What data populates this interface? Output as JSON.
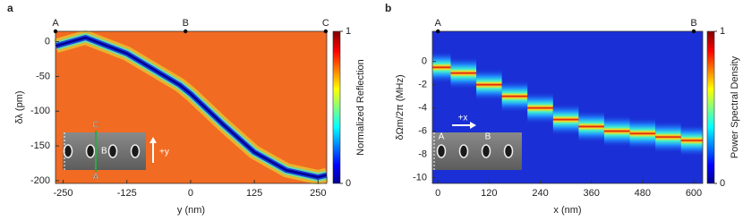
{
  "chart_data": [
    {
      "type": "heatmap",
      "panel_label": "a",
      "xlabel": "y (nm)",
      "ylabel": "δλ (pm)",
      "xlim": [
        -265,
        267
      ],
      "ylim": [
        -204,
        15
      ],
      "xticks": [
        -250,
        -125,
        0,
        125,
        250
      ],
      "yticks": [
        0,
        -50,
        -100,
        -150,
        -200
      ],
      "background_color": "#f26b22",
      "colorbar": {
        "label": "Normalized Reflection",
        "lim": [
          0,
          1
        ],
        "ticks": [
          0,
          1
        ]
      },
      "top_markers": {
        "labels": [
          "A",
          "B",
          "C"
        ],
        "x": [
          -265,
          -10,
          265
        ]
      },
      "ridge": {
        "x": [
          -264,
          -206,
          -125,
          -22,
          0,
          65,
          125,
          188,
          250,
          267
        ],
        "values": [
          -6,
          6,
          -17,
          -62,
          -75,
          -120,
          -159,
          -185,
          -195,
          -192
        ]
      },
      "inset_labels": [
        "C",
        "B",
        "A",
        "+y"
      ]
    },
    {
      "type": "heatmap",
      "panel_label": "b",
      "xlabel": "x (nm)",
      "ylabel": "δΩm/2π (MHz)",
      "xlim": [
        -13,
        621
      ],
      "ylim": [
        -10.5,
        2.6
      ],
      "xticks": [
        0,
        120,
        240,
        360,
        480,
        600
      ],
      "yticks": [
        0,
        -2,
        -4,
        -6,
        -8,
        -10
      ],
      "background_color": "#1a2fd6",
      "colorbar": {
        "label": "Power Spectral Density",
        "lim": [
          0,
          1
        ],
        "ticks": [
          0,
          1
        ]
      },
      "top_markers": {
        "labels": [
          "A",
          "B"
        ],
        "x": [
          0,
          600
        ]
      },
      "ridge": {
        "x": [
          0,
          60,
          120,
          180,
          240,
          300,
          360,
          420,
          480,
          540,
          600
        ],
        "values": [
          -0.5,
          -1,
          -2,
          -3,
          -4,
          -5,
          -5.6,
          -6,
          -6.2,
          -6.5,
          -6.8
        ]
      },
      "inset_labels": [
        "A",
        "B",
        "+x"
      ]
    }
  ]
}
